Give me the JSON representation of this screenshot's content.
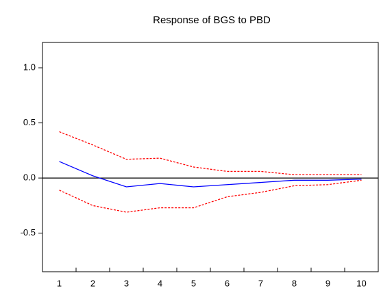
{
  "chart_data": {
    "type": "line",
    "title": "Response of BGS to PBD",
    "categories": [
      "1",
      "2",
      "3",
      "4",
      "5",
      "6",
      "7",
      "8",
      "9",
      "10"
    ],
    "series": [
      {
        "color": "#0000ff",
        "style": "solid",
        "values": [
          0.15,
          0.02,
          -0.08,
          -0.05,
          -0.08,
          -0.06,
          -0.04,
          -0.02,
          -0.02,
          -0.01
        ]
      },
      {
        "color": "#ff0000",
        "style": "dashed",
        "values": [
          0.42,
          0.3,
          0.17,
          0.18,
          0.1,
          0.06,
          0.06,
          0.03,
          0.03,
          0.03
        ]
      },
      {
        "color": "#ff0000",
        "style": "dashed",
        "values": [
          -0.11,
          -0.25,
          -0.31,
          -0.27,
          -0.27,
          -0.17,
          -0.13,
          -0.07,
          -0.06,
          -0.02
        ]
      }
    ],
    "ylim": [
      -0.85,
      1.23
    ],
    "yticks": [
      {
        "value": -0.5,
        "label": "-0.5"
      },
      {
        "value": 0,
        "label": "0.0"
      },
      {
        "value": 0.5,
        "label": "0.5"
      },
      {
        "value": 1,
        "label": "1.0"
      }
    ],
    "zero_line": true
  }
}
